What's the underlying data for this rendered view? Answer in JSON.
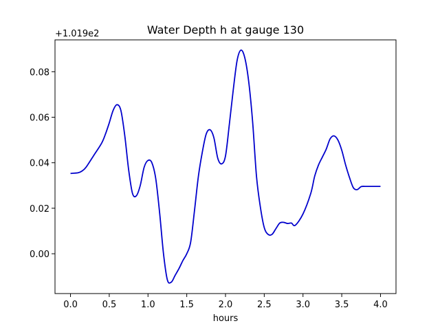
{
  "chart_data": {
    "type": "line",
    "title": "Water Depth h at gauge 130",
    "xlabel": "hours",
    "ylabel": "",
    "y_offset_label": "+1.019e2",
    "xlim": [
      -0.2,
      4.2
    ],
    "ylim": [
      -0.0175,
      0.094
    ],
    "x_ticks": [
      0.0,
      0.5,
      1.0,
      1.5,
      2.0,
      2.5,
      3.0,
      3.5,
      4.0
    ],
    "x_tick_labels": [
      "0.0",
      "0.5",
      "1.0",
      "1.5",
      "2.0",
      "2.5",
      "3.0",
      "3.5",
      "4.0"
    ],
    "y_ticks": [
      0.0,
      0.02,
      0.04,
      0.06,
      0.08
    ],
    "y_tick_labels": [
      "0.00",
      "0.02",
      "0.04",
      "0.06",
      "0.08"
    ],
    "grid": false,
    "series": [
      {
        "color": "#0000cc",
        "x": [
          0.0,
          0.1,
          0.15,
          0.2,
          0.3,
          0.4,
          0.45,
          0.5,
          0.55,
          0.6,
          0.65,
          0.7,
          0.75,
          0.8,
          0.85,
          0.9,
          0.95,
          1.0,
          1.05,
          1.1,
          1.15,
          1.2,
          1.25,
          1.3,
          1.35,
          1.4,
          1.45,
          1.5,
          1.55,
          1.6,
          1.65,
          1.7,
          1.75,
          1.8,
          1.85,
          1.9,
          1.95,
          2.0,
          2.05,
          2.1,
          2.15,
          2.2,
          2.25,
          2.3,
          2.35,
          2.4,
          2.45,
          2.5,
          2.55,
          2.6,
          2.65,
          2.7,
          2.75,
          2.8,
          2.85,
          2.9,
          3.0,
          3.1,
          3.15,
          3.2,
          3.25,
          3.3,
          3.35,
          3.4,
          3.45,
          3.5,
          3.55,
          3.6,
          3.65,
          3.7,
          3.75,
          3.8,
          3.85,
          3.9,
          3.95,
          4.0
        ],
        "y": [
          0.0353,
          0.0356,
          0.0364,
          0.038,
          0.0432,
          0.0485,
          0.0525,
          0.0575,
          0.063,
          0.0655,
          0.063,
          0.052,
          0.037,
          0.0265,
          0.0255,
          0.03,
          0.038,
          0.041,
          0.04,
          0.033,
          0.018,
          0.0,
          -0.0115,
          -0.0125,
          -0.0095,
          -0.0065,
          -0.003,
          0.0,
          0.005,
          0.019,
          0.034,
          0.0445,
          0.0525,
          0.0545,
          0.051,
          0.042,
          0.0395,
          0.043,
          0.057,
          0.072,
          0.085,
          0.0895,
          0.086,
          0.0755,
          0.058,
          0.034,
          0.0205,
          0.0115,
          0.0085,
          0.0085,
          0.011,
          0.0135,
          0.0138,
          0.0133,
          0.0135,
          0.0125,
          0.0175,
          0.0265,
          0.034,
          0.039,
          0.0425,
          0.046,
          0.0505,
          0.0518,
          0.05,
          0.0455,
          0.039,
          0.0335,
          0.029,
          0.0282,
          0.0295,
          0.0296,
          0.0296,
          0.0296,
          0.0296,
          0.0296
        ]
      }
    ]
  }
}
